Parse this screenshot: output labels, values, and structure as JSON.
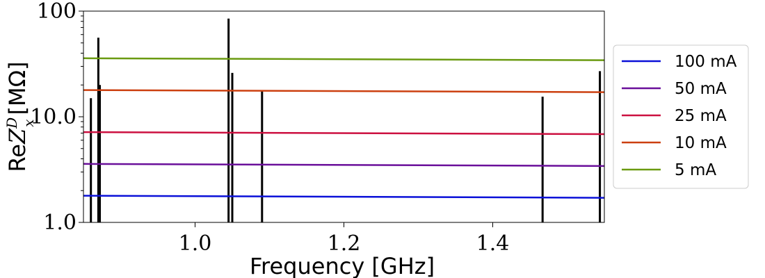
{
  "chart_data": {
    "type": "line",
    "title": "",
    "xlabel": "Frequency [GHz]",
    "ylabel": "ReZ_x^D [MΩ]",
    "ylabel_parts": {
      "re": "Re",
      "z": "Z",
      "sup": "D",
      "sub": "x",
      "unit": "[MΩ]"
    },
    "xlim": [
      0.85,
      1.55
    ],
    "ylim": [
      1.0,
      100
    ],
    "yscale": "log",
    "grid": false,
    "legend_position": "right-outside",
    "x_ticks": [
      1.0,
      1.2,
      1.4
    ],
    "x_tick_labels": [
      "1.0",
      "1.2",
      "1.4"
    ],
    "y_ticks": [
      1.0,
      10.0,
      100
    ],
    "y_tick_labels": [
      "1.0",
      "10.0",
      "100"
    ],
    "series": [
      {
        "name": "100 mA",
        "color": "#0a10d8",
        "x": [
          0.85,
          1.55
        ],
        "y": [
          1.79,
          1.71
        ]
      },
      {
        "name": "50 mA",
        "color": "#6a0f9a",
        "x": [
          0.85,
          1.55
        ],
        "y": [
          3.58,
          3.42
        ]
      },
      {
        "name": "25 mA",
        "color": "#cc1040",
        "x": [
          0.85,
          1.55
        ],
        "y": [
          7.15,
          6.85
        ]
      },
      {
        "name": "10 mA",
        "color": "#cc4010",
        "x": [
          0.85,
          1.55
        ],
        "y": [
          17.9,
          17.1
        ]
      },
      {
        "name": "5 mA",
        "color": "#6a9a10",
        "x": [
          0.85,
          1.55
        ],
        "y": [
          35.8,
          34.3
        ]
      }
    ],
    "resonances": {
      "color": "#000000",
      "x": [
        0.86,
        0.87,
        0.872,
        1.045,
        1.05,
        1.09,
        1.467,
        1.544
      ],
      "y": [
        15,
        56,
        20,
        85,
        26,
        17.5,
        15.5,
        27
      ]
    }
  }
}
